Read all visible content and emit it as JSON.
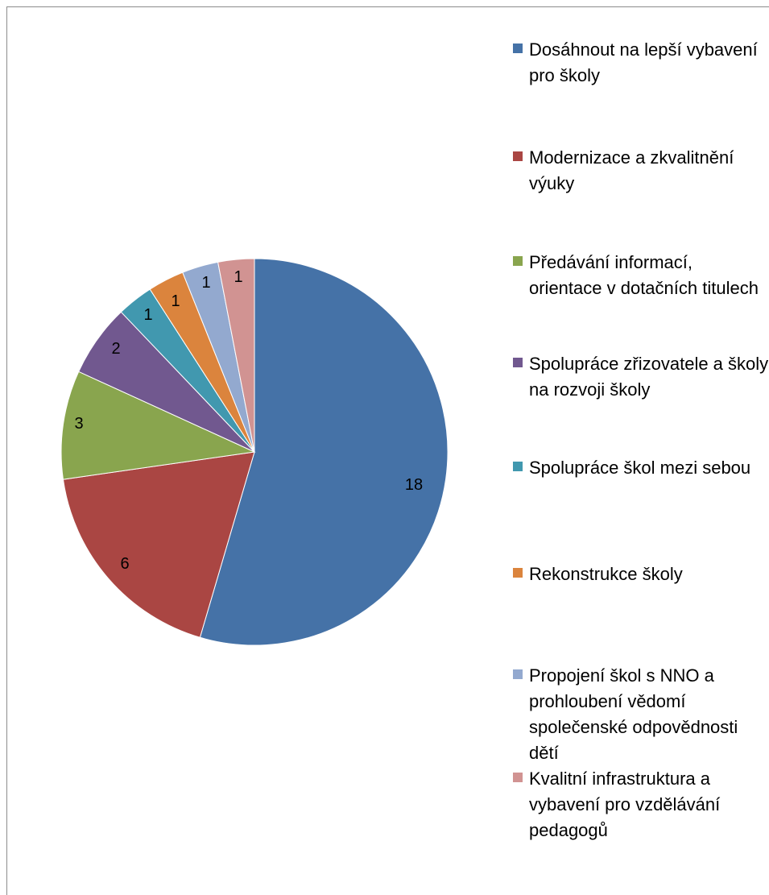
{
  "chart_data": {
    "type": "pie",
    "title": "",
    "categories": [
      "Dosáhnout na lepší vybavení pro školy",
      "Modernizace a zkvalitnění výuky",
      "Předávání informací, orientace v dotačních titulech",
      "Spolupráce zřizovatele a školy na rozvoji školy",
      "Spolupráce škol mezi sebou",
      "Rekonstrukce školy",
      "Propojení škol s NNO a prohloubení vědomí společenské odpovědnosti dětí",
      "Kvalitní infrastruktura a vybavení pro vzdělávání pedagogů"
    ],
    "values": [
      18,
      6,
      3,
      2,
      1,
      1,
      1,
      1
    ],
    "data_labels": [
      "18",
      "6",
      "3",
      "2",
      "1",
      "1",
      "1",
      "1"
    ],
    "colors": [
      "#4572a7",
      "#aa4643",
      "#89a54e",
      "#71588f",
      "#4198af",
      "#db843d",
      "#93a9cf",
      "#d19392"
    ],
    "legend_position": "right"
  }
}
